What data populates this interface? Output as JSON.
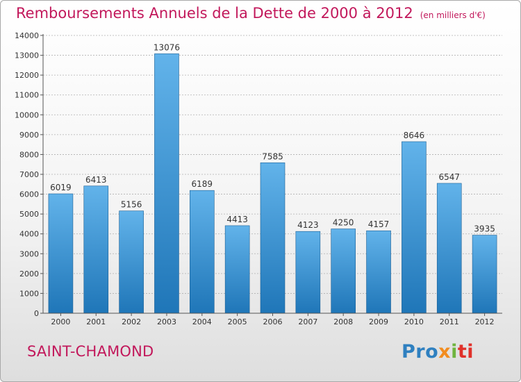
{
  "title": "Remboursements Annuels de la Dette de 2000 à 2012",
  "unit": "(en milliers d'€)",
  "city": "SAINT-CHAMOND",
  "logo": {
    "text": "Proxiti",
    "parts": [
      "Pro",
      "x",
      "i",
      "ti"
    ]
  },
  "colors": {
    "title": "#c2185b",
    "bar_light": "#62b3ea",
    "bar_dark": "#1f76b8",
    "grid": "#b0b0b0"
  },
  "chart_data": {
    "type": "bar",
    "title": "Remboursements Annuels de la Dette de 2000 à 2012",
    "xlabel": "",
    "ylabel": "",
    "categories": [
      "2000",
      "2001",
      "2002",
      "2003",
      "2004",
      "2005",
      "2006",
      "2007",
      "2008",
      "2009",
      "2010",
      "2011",
      "2012"
    ],
    "values": [
      6019,
      6413,
      5156,
      13076,
      6189,
      4413,
      7585,
      4123,
      4250,
      4157,
      8646,
      6547,
      3935
    ],
    "ylim": [
      0,
      14000
    ],
    "yticks": [
      0,
      1000,
      2000,
      3000,
      4000,
      5000,
      6000,
      7000,
      8000,
      9000,
      10000,
      11000,
      12000,
      13000,
      14000
    ],
    "grid": true,
    "legend": "none"
  }
}
